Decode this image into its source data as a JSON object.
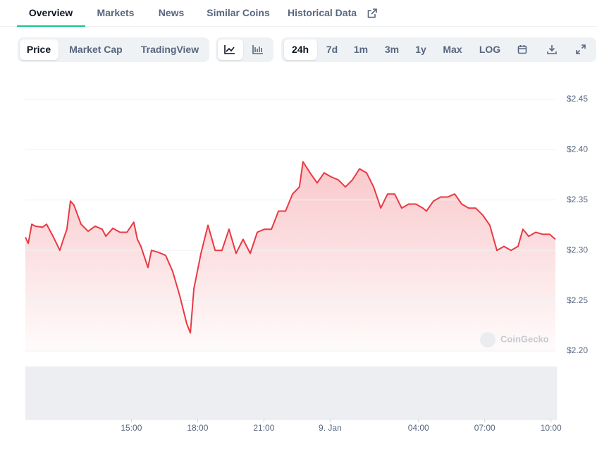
{
  "tabs": [
    "Overview",
    "Markets",
    "News",
    "Similar Coins",
    "Historical Data"
  ],
  "view_buttons": [
    "Price",
    "Market Cap",
    "TradingView"
  ],
  "range_buttons": [
    "24h",
    "7d",
    "1m",
    "3m",
    "1y",
    "Max",
    "LOG"
  ],
  "watermark": "CoinGecko",
  "chart_data": {
    "type": "line",
    "color": "#ea3943",
    "grid": true,
    "x": [
      10.2,
      10.33,
      10.49,
      10.65,
      10.97,
      11.16,
      11.45,
      11.76,
      11.92,
      12.08,
      12.24,
      12.4,
      12.72,
      13.04,
      13.36,
      13.68,
      13.84,
      14.16,
      14.48,
      14.8,
      15.11,
      15.27,
      15.43,
      15.75,
      15.91,
      16.23,
      16.55,
      16.87,
      17.19,
      17.51,
      17.67,
      17.83,
      18.15,
      18.47,
      18.79,
      19.1,
      19.42,
      19.74,
      20.06,
      20.38,
      20.7,
      21.02,
      21.34,
      21.66,
      21.98,
      22.3,
      22.61,
      22.77,
      23.09,
      23.41,
      23.73,
      24.05,
      24.37,
      24.69,
      25.01,
      25.33,
      25.65,
      25.97,
      26.29,
      26.6,
      26.92,
      27.24,
      27.56,
      27.88,
      28.2,
      28.36,
      28.68,
      29.0,
      29.32,
      29.64,
      29.96,
      30.27,
      30.59,
      30.91,
      31.23,
      31.55,
      31.87,
      32.19,
      32.51,
      32.73,
      32.99,
      33.31,
      33.63,
      33.94,
      34.2
    ],
    "values": [
      2.313,
      2.307,
      2.326,
      2.324,
      2.323,
      2.326,
      2.314,
      2.3,
      2.311,
      2.321,
      2.349,
      2.345,
      2.326,
      2.319,
      2.324,
      2.321,
      2.314,
      2.322,
      2.318,
      2.318,
      2.328,
      2.311,
      2.304,
      2.283,
      2.3,
      2.298,
      2.295,
      2.279,
      2.255,
      2.227,
      2.218,
      2.262,
      2.297,
      2.325,
      2.3,
      2.3,
      2.321,
      2.297,
      2.311,
      2.297,
      2.318,
      2.321,
      2.321,
      2.339,
      2.339,
      2.356,
      2.363,
      2.388,
      2.377,
      2.367,
      2.377,
      2.373,
      2.37,
      2.363,
      2.37,
      2.381,
      2.377,
      2.363,
      2.342,
      2.356,
      2.356,
      2.342,
      2.346,
      2.346,
      2.342,
      2.339,
      2.349,
      2.353,
      2.353,
      2.356,
      2.346,
      2.342,
      2.342,
      2.335,
      2.325,
      2.3,
      2.304,
      2.3,
      2.304,
      2.321,
      2.314,
      2.318,
      2.316,
      2.316,
      2.311
    ],
    "xlim": [
      10.2,
      34.2
    ],
    "xticks": [
      {
        "value": 15,
        "label": "15:00"
      },
      {
        "value": 18,
        "label": "18:00"
      },
      {
        "value": 21,
        "label": "21:00"
      },
      {
        "value": 24,
        "label": "9. Jan"
      },
      {
        "value": 28,
        "label": "04:00"
      },
      {
        "value": 31,
        "label": "07:00"
      },
      {
        "value": 34,
        "label": "10:00"
      }
    ],
    "ylim": [
      2.2,
      2.45
    ],
    "yticks": [
      {
        "value": 2.2,
        "label": "$2.20"
      },
      {
        "value": 2.25,
        "label": "$2.25"
      },
      {
        "value": 2.3,
        "label": "$2.30"
      },
      {
        "value": 2.35,
        "label": "$2.35"
      },
      {
        "value": 2.4,
        "label": "$2.40"
      },
      {
        "value": 2.45,
        "label": "$2.45"
      }
    ]
  }
}
